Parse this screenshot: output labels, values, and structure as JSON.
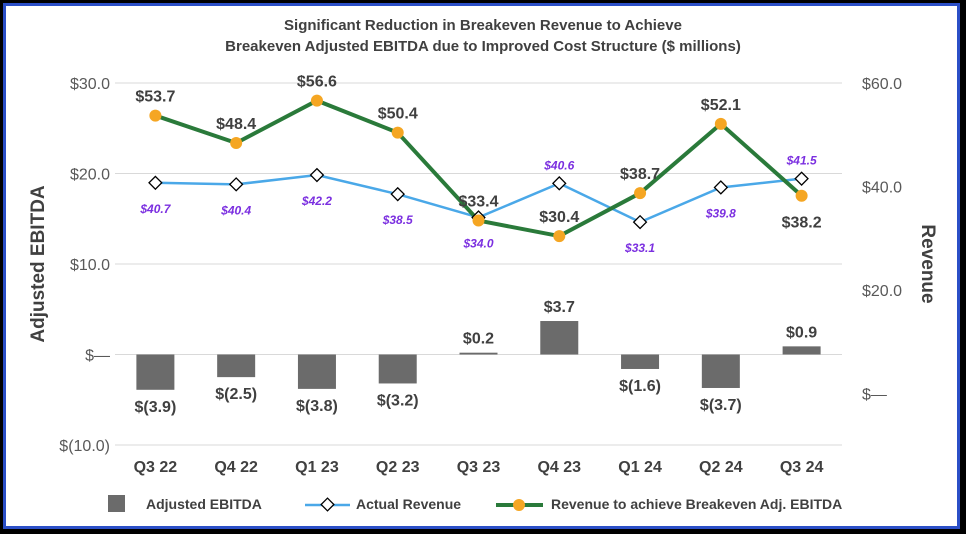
{
  "chart_data": {
    "type": "bar",
    "title_lines": [
      "Significant Reduction in Breakeven Revenue to Achieve",
      "Breakeven Adjusted EBITDA due to Improved Cost Structure ($ millions)"
    ],
    "categories": [
      "Q3 22",
      "Q4 22",
      "Q1 23",
      "Q2 23",
      "Q3 23",
      "Q4 23",
      "Q1 24",
      "Q2 24",
      "Q3 24"
    ],
    "ylabel": "Adjusted EBITDA",
    "y2label": "Revenue",
    "ylim": [
      -10,
      30
    ],
    "y2lim": [
      -10,
      60
    ],
    "y_ticks": [
      {
        "value": 30,
        "label": "$30.0"
      },
      {
        "value": 20,
        "label": "$20.0"
      },
      {
        "value": 10,
        "label": "$10.0"
      },
      {
        "value": 0,
        "label": "$—"
      },
      {
        "value": -10,
        "label": "$(10.0)"
      }
    ],
    "y2_ticks": [
      {
        "value": 60,
        "label": "$60.0"
      },
      {
        "value": 40,
        "label": "$40.0"
      },
      {
        "value": 20,
        "label": "$20.0"
      },
      {
        "value": 0,
        "label": "$—"
      }
    ],
    "series": [
      {
        "name": "Adjusted EBITDA",
        "type": "bar",
        "axis": "left",
        "color": "#6b6b6b",
        "values": [
          -3.9,
          -2.5,
          -3.8,
          -3.2,
          0.2,
          3.7,
          -1.6,
          -3.7,
          0.9
        ],
        "labels": [
          "$(3.9)",
          "$(2.5)",
          "$(3.8)",
          "$(3.2)",
          "$0.2",
          "$3.7",
          "$(1.6)",
          "$(3.7)",
          "$0.9"
        ]
      },
      {
        "name": "Actual Revenue",
        "type": "line",
        "axis": "right",
        "color": "#4aa8e8",
        "values": [
          40.7,
          40.4,
          42.2,
          38.5,
          34.0,
          40.6,
          33.1,
          39.8,
          41.5
        ],
        "labels": [
          "$40.7",
          "$40.4",
          "$42.2",
          "$38.5",
          "$34.0",
          "$40.6",
          "$33.1",
          "$39.8",
          "$41.5"
        ]
      },
      {
        "name": "Revenue to achieve Breakeven Adj. EBITDA",
        "type": "line",
        "axis": "right",
        "color": "#2a7a3a",
        "marker_color": "#f5a623",
        "values": [
          53.7,
          48.4,
          56.6,
          50.4,
          33.4,
          30.4,
          38.7,
          52.1,
          38.2
        ],
        "labels": [
          "$53.7",
          "$48.4",
          "$56.6",
          "$50.4",
          "$33.4",
          "$30.4",
          "$38.7",
          "$52.1",
          "$38.2"
        ]
      }
    ],
    "legend": "bottom"
  }
}
